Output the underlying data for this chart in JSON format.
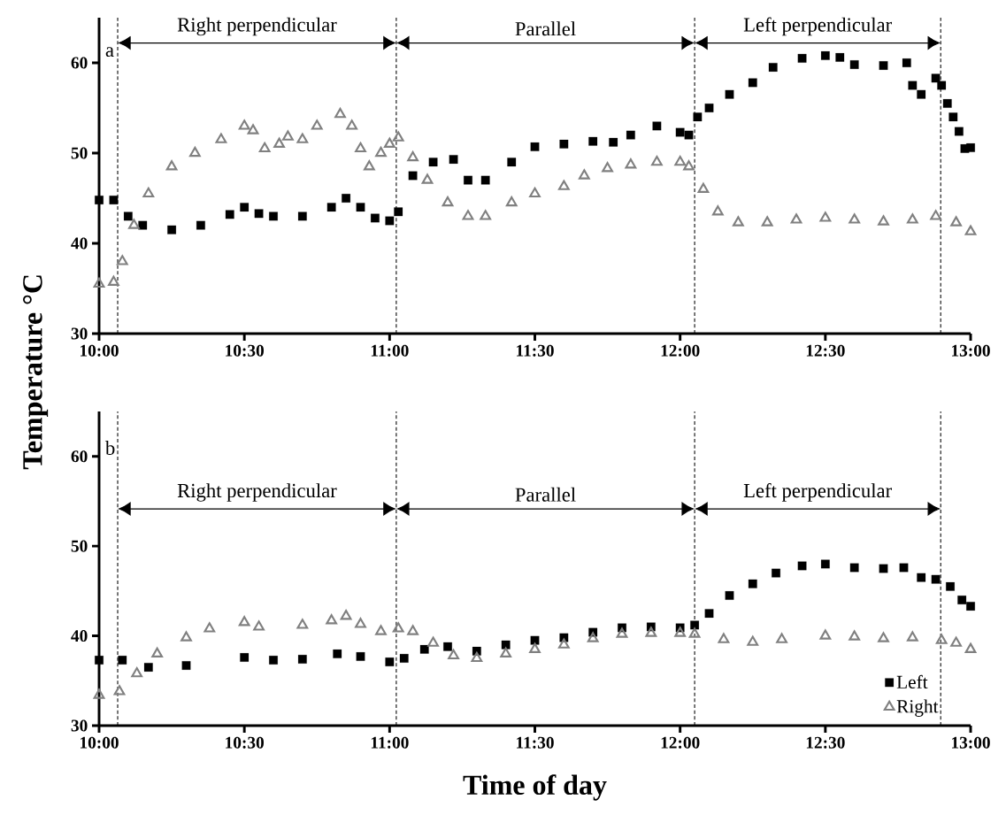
{
  "chart_data": [
    {
      "type": "scatter",
      "ylabel": "Temperature °C",
      "xlim": [
        10,
        13
      ],
      "ylim": [
        30,
        65
      ],
      "xticks": [
        {
          "value": 10,
          "label": "10:00"
        },
        {
          "value": 10.5,
          "label": "10:30"
        },
        {
          "value": 11,
          "label": "11:00"
        },
        {
          "value": 11.5,
          "label": "11:30"
        },
        {
          "value": 12,
          "label": "12:00"
        },
        {
          "value": 12.5,
          "label": "12:30"
        },
        {
          "value": 13,
          "label": "13:00"
        }
      ],
      "yticks": [
        30,
        40,
        50,
        60
      ],
      "ref_lines": [
        {
          "axis": "x",
          "value": 10.064,
          "line_style": "dashed"
        },
        {
          "axis": "x",
          "value": 11.023,
          "line_style": "dashed"
        },
        {
          "axis": "x",
          "value": 12.05,
          "line_style": "dashed"
        },
        {
          "axis": "x",
          "value": 12.897,
          "line_style": "dashed"
        }
      ],
      "annotations": [
        "a",
        "Right perpendicular",
        "Parallel",
        "Left perpendicular"
      ],
      "series": [
        {
          "color": "#000000",
          "marker": "square",
          "x": [
            10.0,
            10.05,
            10.1,
            10.15,
            10.25,
            10.35,
            10.45,
            10.5,
            10.55,
            10.6,
            10.7,
            10.8,
            10.85,
            10.9,
            10.95,
            11.0,
            11.03,
            11.08,
            11.15,
            11.22,
            11.27,
            11.33,
            11.42,
            11.5,
            11.6,
            11.7,
            11.77,
            11.83,
            11.92,
            12.0,
            12.03,
            12.06,
            12.1,
            12.17,
            12.25,
            12.32,
            12.42,
            12.5,
            12.55,
            12.6,
            12.7,
            12.78,
            12.8,
            12.83,
            12.88,
            12.9,
            12.92,
            12.94,
            12.96,
            12.98,
            13.0
          ],
          "values": [
            44.8,
            44.8,
            43,
            42,
            41.5,
            42,
            43.2,
            44,
            43.3,
            43,
            43,
            44,
            45,
            44,
            42.8,
            42.5,
            43.5,
            47.5,
            49,
            49.3,
            47,
            47,
            49,
            50.7,
            51,
            51.3,
            51.2,
            52,
            53,
            52.3,
            52,
            54,
            55,
            56.5,
            57.8,
            59.5,
            60.5,
            60.8,
            60.6,
            59.8,
            59.7,
            60,
            57.5,
            56.5,
            58.3,
            57.5,
            55.5,
            54,
            52.4,
            50.5,
            50.6
          ]
        },
        {
          "color": "#808080",
          "marker": "triangle",
          "x": [
            10.0,
            10.05,
            10.08,
            10.12,
            10.17,
            10.25,
            10.33,
            10.42,
            10.5,
            10.53,
            10.57,
            10.62,
            10.65,
            10.7,
            10.75,
            10.83,
            10.87,
            10.9,
            10.93,
            10.97,
            11.0,
            11.03,
            11.08,
            11.13,
            11.2,
            11.27,
            11.33,
            11.42,
            11.5,
            11.6,
            11.67,
            11.75,
            11.83,
            11.92,
            12.0,
            12.03,
            12.08,
            12.13,
            12.2,
            12.3,
            12.4,
            12.5,
            12.6,
            12.7,
            12.8,
            12.88,
            12.95,
            13.0
          ],
          "values": [
            35.5,
            35.7,
            38,
            42,
            45.5,
            48.5,
            50,
            51.5,
            53,
            52.5,
            50.5,
            51,
            51.8,
            51.5,
            53,
            54.3,
            53,
            50.5,
            48.5,
            50,
            51,
            51.7,
            49.5,
            47,
            44.5,
            43,
            43,
            44.5,
            45.5,
            46.3,
            47.5,
            48.3,
            48.7,
            49,
            49,
            48.5,
            46,
            43.5,
            42.3,
            42.3,
            42.6,
            42.8,
            42.6,
            42.4,
            42.6,
            43,
            42.3,
            41.3
          ]
        }
      ]
    },
    {
      "type": "scatter",
      "xlabel": "Time of day",
      "xlim": [
        10,
        13
      ],
      "ylim": [
        30,
        65
      ],
      "legend": "bottom right",
      "xticks": [
        {
          "value": 10,
          "label": "10:00"
        },
        {
          "value": 10.5,
          "label": "10:30"
        },
        {
          "value": 11,
          "label": "11:00"
        },
        {
          "value": 11.5,
          "label": "11:30"
        },
        {
          "value": 12,
          "label": "12:00"
        },
        {
          "value": 12.5,
          "label": "12:30"
        },
        {
          "value": 13,
          "label": "13:00"
        }
      ],
      "yticks": [
        30,
        40,
        50,
        60
      ],
      "ref_lines": [
        {
          "axis": "x",
          "value": 10.064,
          "line_style": "dashed"
        },
        {
          "axis": "x",
          "value": 11.023,
          "line_style": "dashed"
        },
        {
          "axis": "x",
          "value": 12.05,
          "line_style": "dashed"
        },
        {
          "axis": "x",
          "value": 12.897,
          "line_style": "dashed"
        }
      ],
      "annotations": [
        "b",
        "Right perpendicular",
        "Parallel",
        "Left perpendicular"
      ],
      "series": [
        {
          "name": "Left",
          "color": "#000000",
          "marker": "square",
          "x": [
            10.0,
            10.08,
            10.17,
            10.3,
            10.5,
            10.6,
            10.7,
            10.82,
            10.9,
            11.0,
            11.05,
            11.12,
            11.2,
            11.3,
            11.4,
            11.5,
            11.6,
            11.7,
            11.8,
            11.9,
            12.0,
            12.05,
            12.1,
            12.17,
            12.25,
            12.33,
            12.42,
            12.5,
            12.6,
            12.7,
            12.77,
            12.83,
            12.88,
            12.93,
            12.97,
            13.0
          ],
          "values": [
            37.3,
            37.3,
            36.5,
            36.7,
            37.6,
            37.3,
            37.4,
            38,
            37.7,
            37.1,
            37.5,
            38.5,
            38.8,
            38.3,
            39,
            39.5,
            39.8,
            40.4,
            40.9,
            41,
            40.9,
            41.2,
            42.5,
            44.5,
            45.8,
            47,
            47.8,
            48,
            47.6,
            47.5,
            47.6,
            46.5,
            46.3,
            45.5,
            44,
            43.3
          ]
        },
        {
          "name": "Right",
          "color": "#808080",
          "marker": "triangle",
          "x": [
            10.0,
            10.07,
            10.13,
            10.2,
            10.3,
            10.38,
            10.5,
            10.55,
            10.7,
            10.8,
            10.85,
            10.9,
            10.97,
            11.03,
            11.08,
            11.15,
            11.22,
            11.3,
            11.4,
            11.5,
            11.6,
            11.7,
            11.8,
            11.9,
            12.0,
            12.05,
            12.15,
            12.25,
            12.35,
            12.5,
            12.6,
            12.7,
            12.8,
            12.9,
            12.95,
            13.0
          ],
          "values": [
            33.4,
            33.8,
            35.8,
            38,
            39.8,
            40.8,
            41.5,
            41,
            41.2,
            41.7,
            42.2,
            41.3,
            40.5,
            40.8,
            40.5,
            39.2,
            37.8,
            37.5,
            38,
            38.5,
            39,
            39.7,
            40.2,
            40.3,
            40.3,
            40.2,
            39.6,
            39.3,
            39.6,
            40,
            39.9,
            39.7,
            39.8,
            39.5,
            39.2,
            38.5
          ]
        }
      ]
    }
  ]
}
